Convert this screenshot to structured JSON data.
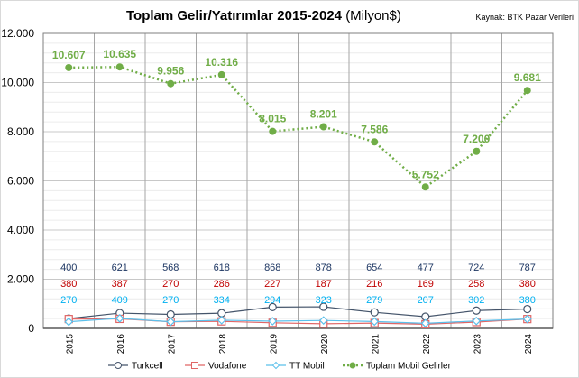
{
  "chart_data": {
    "type": "line",
    "title": "Toplam Gelir/Yatırımlar 2015-2024",
    "title_unit": "(Milyon$)",
    "source": "Kaynak: BTK Pazar Verileri",
    "categories": [
      "2015",
      "2016",
      "2017",
      "2018",
      "2019",
      "2020",
      "2021",
      "2022",
      "2023",
      "2024"
    ],
    "ylim": [
      0,
      12000
    ],
    "yticks": [
      0,
      2000,
      4000,
      6000,
      8000,
      10000,
      12000
    ],
    "ytick_labels": [
      "0",
      "2.000",
      "4.000",
      "6.000",
      "8.000",
      "10.000",
      "12.000"
    ],
    "grid": true,
    "legend_position": "bottom",
    "series": [
      {
        "name": "Turkcell",
        "color": "#44546a",
        "marker": "circle",
        "label_color": "#1f3864",
        "values": [
          400,
          621,
          568,
          618,
          868,
          878,
          654,
          477,
          724,
          787
        ]
      },
      {
        "name": "Vodafone",
        "color": "#e06666",
        "marker": "square",
        "label_color": "#c00000",
        "values": [
          380,
          387,
          270,
          286,
          227,
          187,
          216,
          169,
          258,
          380
        ]
      },
      {
        "name": "TT Mobil",
        "color": "#5bc0eb",
        "marker": "diamond",
        "label_color": "#00b0f0",
        "values": [
          270,
          409,
          270,
          334,
          294,
          323,
          279,
          207,
          302,
          380
        ]
      },
      {
        "name": "Toplam Mobil Gelirler",
        "color": "#70ad47",
        "marker": "dot",
        "label_color": "#70ad47",
        "values": [
          10607,
          10635,
          9956,
          10316,
          8015,
          8201,
          7586,
          5752,
          7200,
          9681
        ]
      }
    ],
    "value_labels": {
      "Turkcell": [
        "400",
        "621",
        "568",
        "618",
        "868",
        "878",
        "654",
        "477",
        "724",
        "787"
      ],
      "Vodafone": [
        "380",
        "387",
        "270",
        "286",
        "227",
        "187",
        "216",
        "169",
        "258",
        "380"
      ],
      "TT Mobil": [
        "270",
        "409",
        "270",
        "334",
        "294",
        "323",
        "279",
        "207",
        "302",
        "380"
      ],
      "Toplam Mobil Gelirler": [
        "10.607",
        "10.635",
        "9.956",
        "10.316",
        "8.015",
        "8.201",
        "7.586",
        "5.752",
        "7.200",
        "9.681"
      ]
    }
  }
}
